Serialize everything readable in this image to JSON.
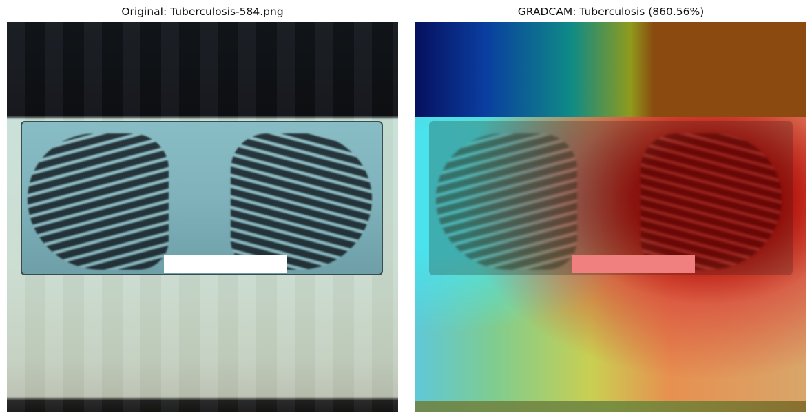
{
  "panels": {
    "left": {
      "title": "Original: Tuberculosis-584.png"
    },
    "right": {
      "title": "GRADCAM: Tuberculosis (860.56%)"
    }
  },
  "colors": {
    "heat_low": "#06105e",
    "heat_mid": "#c9cf52",
    "heat_high": "#af0000",
    "film": "#89bdc5"
  }
}
